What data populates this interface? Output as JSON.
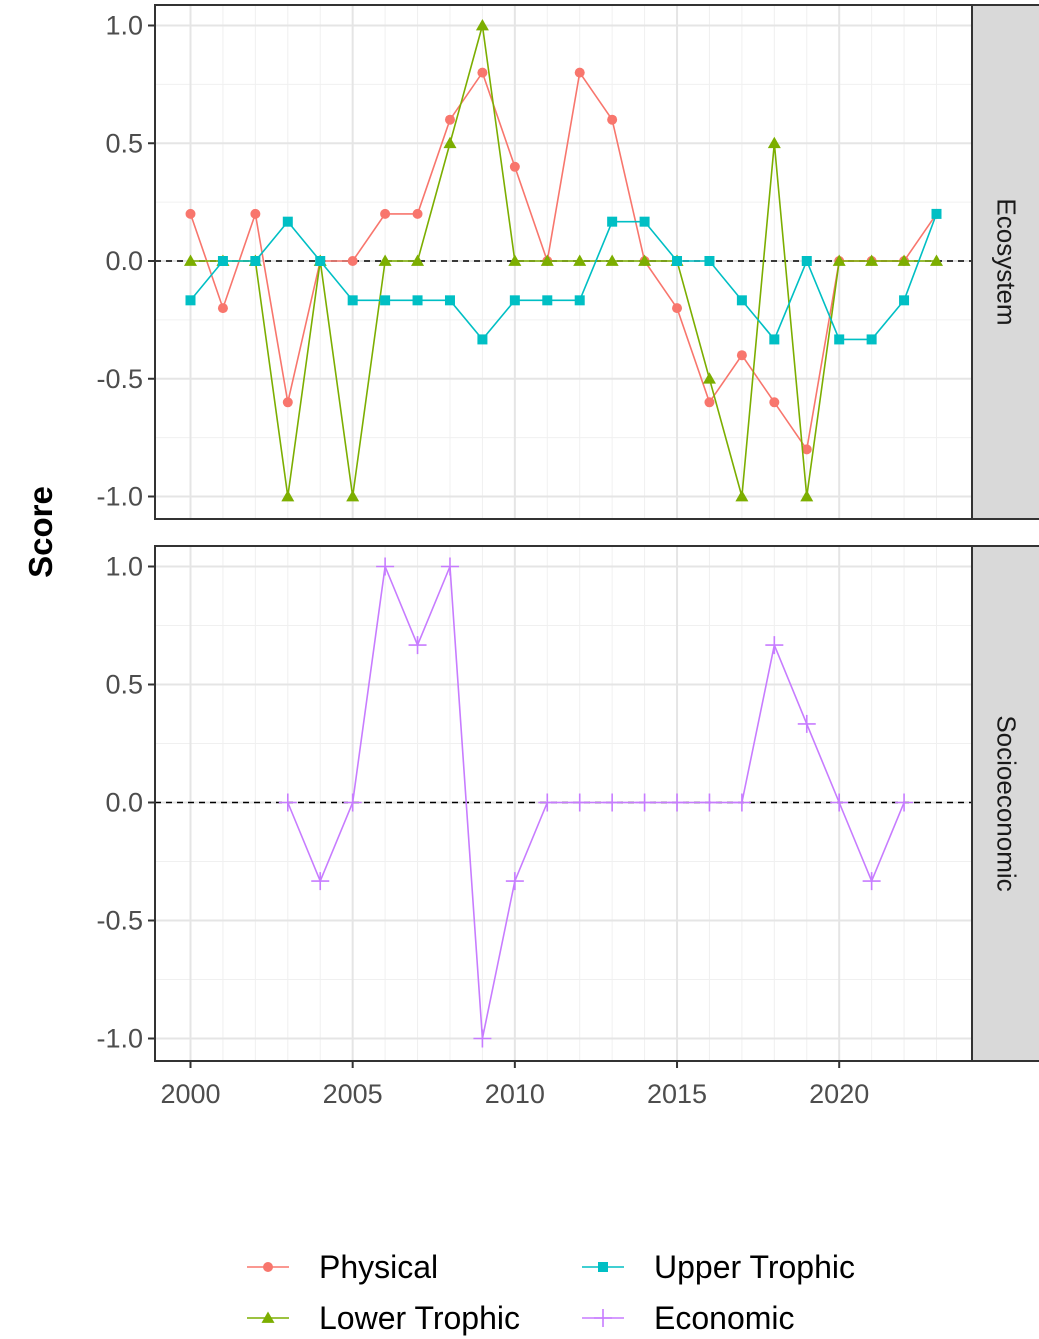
{
  "chart_data": {
    "type": "line",
    "ylabel": "Score",
    "xlabel": "",
    "xlim": [
      1999,
      2024
    ],
    "ylim": [
      -1.1,
      1.1
    ],
    "x_ticks": [
      2000,
      2005,
      2010,
      2015,
      2020
    ],
    "x_tick_labels": [
      "2000",
      "2005",
      "2010",
      "2015",
      "2020"
    ],
    "y_ticks": [
      1.0,
      0.5,
      0.0,
      -0.5,
      -1.0
    ],
    "y_tick_labels": [
      "1.0",
      "0.5",
      "0.0",
      "-0.5",
      "-1.0"
    ],
    "reference_line": 0,
    "grid": true,
    "legend_position": "bottom",
    "panels": [
      {
        "label": "Ecosystem",
        "series": [
          {
            "name": "Physical",
            "color": "#F8766D",
            "marker": "circle",
            "x": [
              2000,
              2001,
              2002,
              2003,
              2004,
              2005,
              2006,
              2007,
              2008,
              2009,
              2010,
              2011,
              2012,
              2013,
              2014,
              2015,
              2016,
              2017,
              2018,
              2019,
              2020,
              2021,
              2022,
              2023
            ],
            "values": [
              0.2,
              -0.2,
              0.2,
              -0.6,
              0,
              0,
              0.2,
              0.2,
              0.6,
              0.8,
              0.4,
              0,
              0.8,
              0.6,
              0,
              -0.2,
              -0.6,
              -0.4,
              -0.6,
              -0.8,
              0,
              0,
              0,
              0.2
            ]
          },
          {
            "name": "Lower Trophic",
            "color": "#7CAE00",
            "marker": "triangle",
            "x": [
              2000,
              2001,
              2002,
              2003,
              2004,
              2005,
              2006,
              2007,
              2008,
              2009,
              2010,
              2011,
              2012,
              2013,
              2014,
              2015,
              2016,
              2017,
              2018,
              2019,
              2020,
              2021,
              2022,
              2023
            ],
            "values": [
              0,
              0,
              0,
              -1,
              0,
              -1,
              0,
              0,
              0.5,
              1,
              0,
              0,
              0,
              0,
              0,
              0,
              -0.5,
              -1,
              0.5,
              -1,
              0,
              0,
              0,
              0
            ]
          },
          {
            "name": "Upper Trophic",
            "color": "#00BFC4",
            "marker": "square",
            "x": [
              2000,
              2001,
              2002,
              2003,
              2004,
              2005,
              2006,
              2007,
              2008,
              2009,
              2010,
              2011,
              2012,
              2013,
              2014,
              2015,
              2016,
              2017,
              2018,
              2019,
              2020,
              2021,
              2022,
              2023
            ],
            "values": [
              -0.167,
              0,
              0,
              0.167,
              0,
              -0.167,
              -0.167,
              -0.167,
              -0.167,
              -0.333,
              -0.167,
              -0.167,
              -0.167,
              0.167,
              0.167,
              0,
              0,
              -0.167,
              -0.333,
              0,
              -0.333,
              -0.333,
              -0.167,
              0.2
            ]
          }
        ]
      },
      {
        "label": "Socioeconomic",
        "series": [
          {
            "name": "Economic",
            "color": "#C77CFF",
            "marker": "plus",
            "x": [
              2003,
              2004,
              2005,
              2006,
              2007,
              2008,
              2009,
              2010,
              2011,
              2012,
              2013,
              2014,
              2015,
              2016,
              2017,
              2018,
              2019,
              2020,
              2021,
              2022
            ],
            "values": [
              0,
              -0.333,
              0,
              1,
              0.667,
              1,
              -1,
              -0.333,
              0,
              0,
              0,
              0,
              0,
              0,
              0,
              0.667,
              0.333,
              0,
              -0.333,
              0
            ]
          }
        ]
      }
    ],
    "legend": [
      "Physical",
      "Lower Trophic",
      "Upper Trophic",
      "Economic"
    ]
  }
}
